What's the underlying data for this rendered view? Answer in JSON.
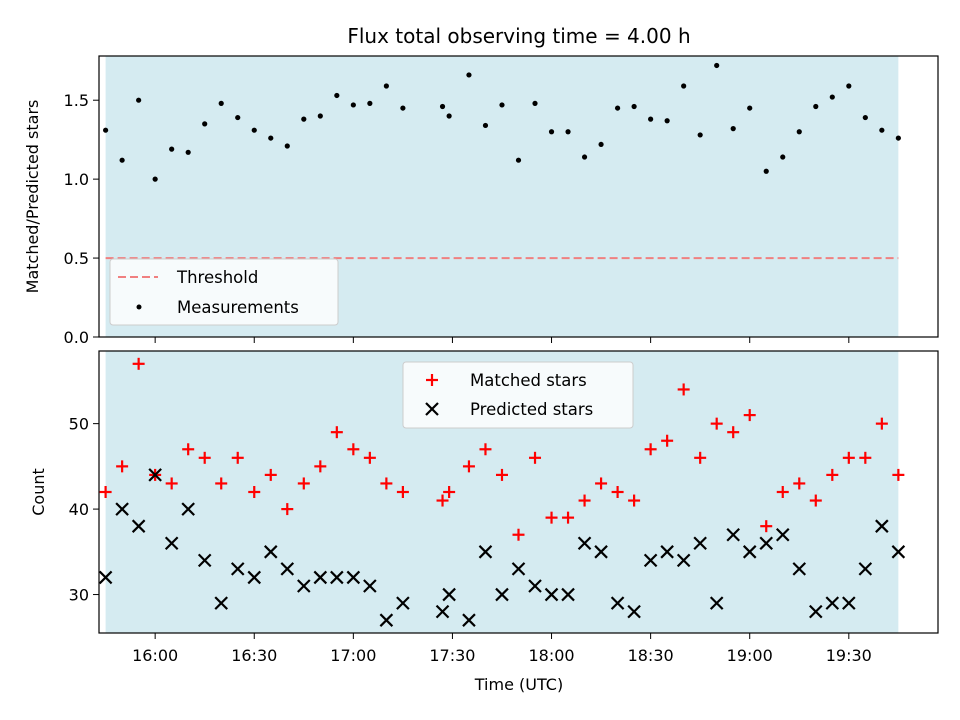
{
  "chart_data": [
    {
      "panel": "top",
      "type": "scatter",
      "title": "Flux total observing time = 4.00 h",
      "ylabel": "Matched/Predicted stars",
      "xlabel": "",
      "ylim": [
        0,
        1.78
      ],
      "xlim": [
        "15:43",
        "19:57"
      ],
      "yticks": [
        "0.0",
        "0.5",
        "1.0",
        "1.5"
      ],
      "ytick_values": [
        0,
        0.5,
        1.0,
        1.5
      ],
      "xtick_labels": false,
      "shaded_span": {
        "from": "15:45",
        "to": "19:45",
        "color": "#d5ebf1"
      },
      "threshold": {
        "name": "Threshold",
        "value": 0.5,
        "color": "#f08080",
        "style": "dashed"
      },
      "series": [
        {
          "name": "Measurements",
          "color": "#000000",
          "marker": "dot",
          "x": [
            "15:45",
            "15:50",
            "15:55",
            "16:00",
            "16:05",
            "16:10",
            "16:15",
            "16:20",
            "16:25",
            "16:30",
            "16:35",
            "16:40",
            "16:45",
            "16:50",
            "16:55",
            "17:00",
            "17:05",
            "17:10",
            "17:15",
            "17:27",
            "17:29",
            "17:35",
            "17:40",
            "17:45",
            "17:50",
            "17:55",
            "18:00",
            "18:05",
            "18:10",
            "18:15",
            "18:20",
            "18:25",
            "18:30",
            "18:35",
            "18:40",
            "18:45",
            "18:50",
            "18:55",
            "19:00",
            "19:05",
            "19:10",
            "19:15",
            "19:20",
            "19:25",
            "19:30",
            "19:35",
            "19:40",
            "19:45"
          ],
          "y": [
            1.31,
            1.12,
            1.5,
            1.0,
            1.19,
            1.17,
            1.35,
            1.48,
            1.39,
            1.31,
            1.26,
            1.21,
            1.38,
            1.4,
            1.53,
            1.47,
            1.48,
            1.59,
            1.45,
            1.46,
            1.4,
            1.66,
            1.34,
            1.47,
            1.12,
            1.48,
            1.3,
            1.3,
            1.14,
            1.22,
            1.45,
            1.46,
            1.38,
            1.37,
            1.59,
            1.28,
            1.72,
            1.32,
            1.45,
            1.05,
            1.14,
            1.3,
            1.46,
            1.52,
            1.59,
            1.39,
            1.31,
            1.26
          ]
        }
      ],
      "legend": {
        "placement": "lower-left",
        "entries": [
          "Threshold",
          "Measurements"
        ]
      }
    },
    {
      "panel": "bottom",
      "type": "scatter",
      "title": "",
      "ylabel": "Count",
      "xlabel": "Time (UTC)",
      "ylim": [
        25.5,
        58.5
      ],
      "xlim": [
        "15:43",
        "19:57"
      ],
      "yticks": [
        "30",
        "40",
        "50"
      ],
      "ytick_values": [
        30,
        40,
        50
      ],
      "xticks": [
        "16:00",
        "16:30",
        "17:00",
        "17:30",
        "18:00",
        "18:30",
        "19:00",
        "19:30"
      ],
      "shaded_span": {
        "from": "15:45",
        "to": "19:45",
        "color": "#d5ebf1"
      },
      "series": [
        {
          "name": "Matched stars",
          "color": "#ff0000",
          "marker": "plus",
          "x": [
            "15:45",
            "15:50",
            "15:55",
            "16:00",
            "16:05",
            "16:10",
            "16:15",
            "16:20",
            "16:25",
            "16:30",
            "16:35",
            "16:40",
            "16:45",
            "16:50",
            "16:55",
            "17:00",
            "17:05",
            "17:10",
            "17:15",
            "17:27",
            "17:29",
            "17:35",
            "17:40",
            "17:45",
            "17:50",
            "17:55",
            "18:00",
            "18:05",
            "18:10",
            "18:15",
            "18:20",
            "18:25",
            "18:30",
            "18:35",
            "18:40",
            "18:45",
            "18:50",
            "18:55",
            "19:00",
            "19:05",
            "19:10",
            "19:15",
            "19:20",
            "19:25",
            "19:30",
            "19:35",
            "19:40",
            "19:45"
          ],
          "y": [
            42,
            45,
            57,
            44,
            43,
            47,
            46,
            43,
            46,
            42,
            44,
            40,
            43,
            45,
            49,
            47,
            46,
            43,
            42,
            41,
            42,
            45,
            47,
            44,
            37,
            46,
            39,
            39,
            41,
            43,
            42,
            41,
            47,
            48,
            54,
            46,
            50,
            49,
            51,
            38,
            42,
            43,
            41,
            44,
            46,
            46,
            50,
            44
          ]
        },
        {
          "name": "Predicted stars",
          "color": "#000000",
          "marker": "x",
          "x": [
            "15:45",
            "15:50",
            "15:55",
            "16:00",
            "16:05",
            "16:10",
            "16:15",
            "16:20",
            "16:25",
            "16:30",
            "16:35",
            "16:40",
            "16:45",
            "16:50",
            "16:55",
            "17:00",
            "17:05",
            "17:10",
            "17:15",
            "17:27",
            "17:29",
            "17:35",
            "17:40",
            "17:45",
            "17:50",
            "17:55",
            "18:00",
            "18:05",
            "18:10",
            "18:15",
            "18:20",
            "18:25",
            "18:30",
            "18:35",
            "18:40",
            "18:45",
            "18:50",
            "18:55",
            "19:00",
            "19:05",
            "19:10",
            "19:15",
            "19:20",
            "19:25",
            "19:30",
            "19:35",
            "19:40",
            "19:45"
          ],
          "y": [
            32,
            40,
            38,
            44,
            36,
            40,
            34,
            29,
            33,
            32,
            35,
            33,
            31,
            32,
            32,
            32,
            31,
            27,
            29,
            28,
            30,
            27,
            35,
            30,
            33,
            31,
            30,
            30,
            36,
            35,
            29,
            28,
            34,
            35,
            34,
            36,
            29,
            37,
            35,
            36,
            37,
            33,
            28,
            29,
            29,
            33,
            38,
            35
          ]
        }
      ],
      "legend": {
        "placement": "upper-center",
        "entries": [
          "Matched stars",
          "Predicted stars"
        ]
      }
    }
  ]
}
